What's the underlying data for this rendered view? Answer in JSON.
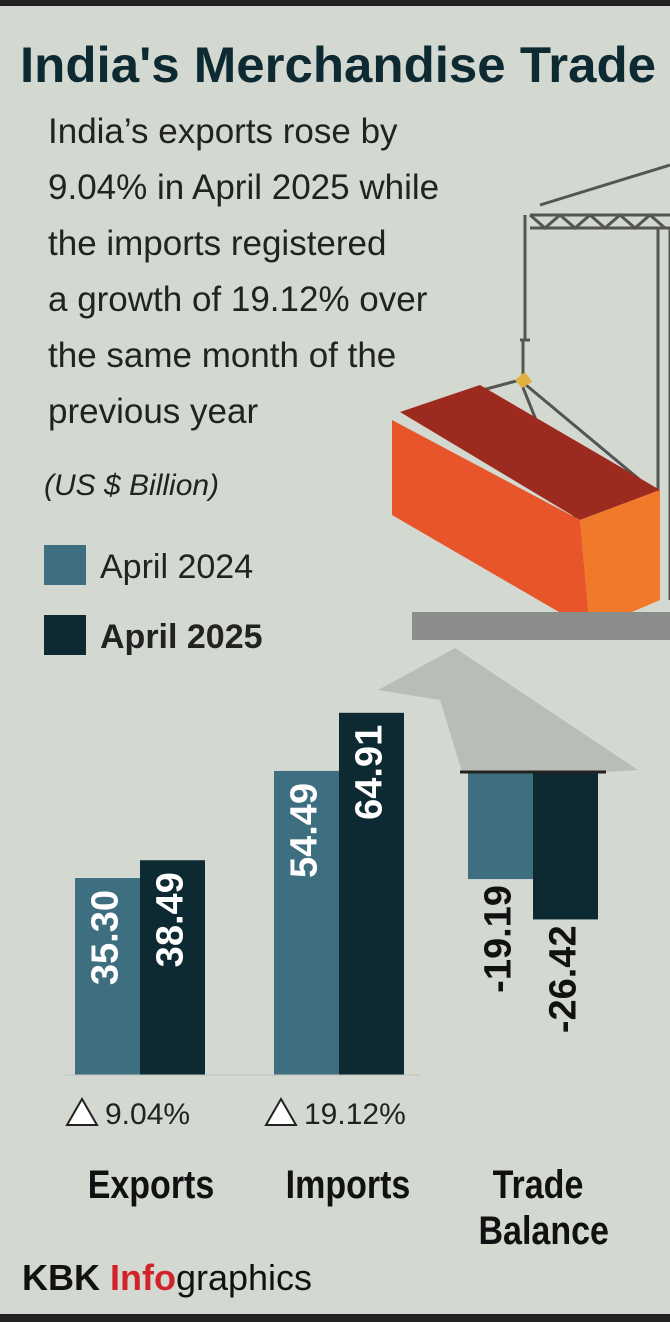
{
  "chart_data": {
    "type": "bar",
    "title": "India's Merchandise Trade",
    "subtitle": [
      "India’s exports rose by",
      "9.04% in April 2025 while",
      "the imports registered",
      "a growth of 19.12% over",
      "the same month of the",
      "previous year"
    ],
    "unit": "(US $ Billion)",
    "categories": [
      "Exports",
      "Imports",
      "Trade Balance"
    ],
    "series": [
      {
        "name": "April 2024",
        "color": "#3d6f80",
        "values": [
          35.3,
          54.49,
          -19.19
        ],
        "value_labels": [
          "35.30",
          "54.49",
          "-19.19"
        ]
      },
      {
        "name": "April 2025",
        "color": "#0d2a33",
        "values": [
          38.49,
          64.91,
          -26.42
        ],
        "value_labels": [
          "38.49",
          "64.91",
          "-26.42"
        ]
      }
    ],
    "growth_labels": [
      "9.04%",
      "19.12%",
      null
    ],
    "source": {
      "prefix": "KBK",
      "highlight": "Info",
      "suffix": "graphics"
    }
  }
}
